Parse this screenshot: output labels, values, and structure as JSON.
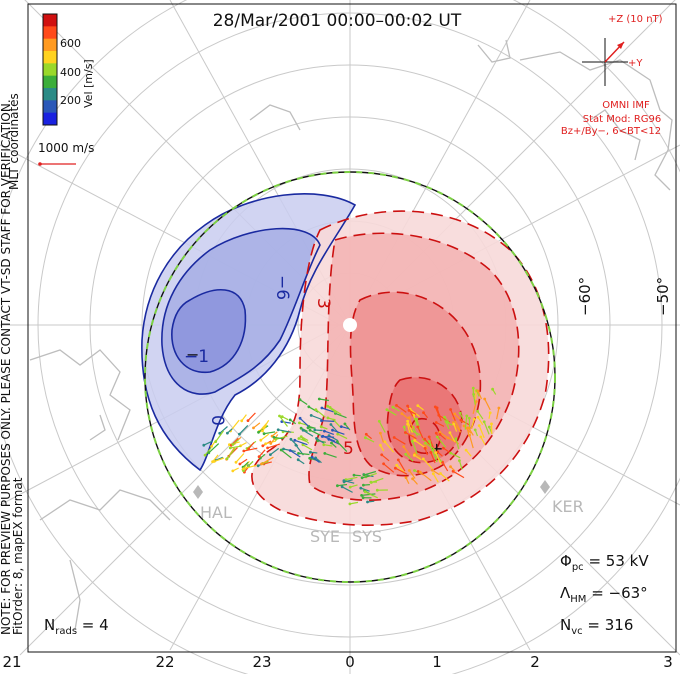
{
  "title": "28/Mar/2001 00:00–00:02 UT",
  "colorbar": {
    "label": "Vel [m/s]",
    "ticks": [
      "600",
      "400",
      "200"
    ],
    "colors": [
      "#d01010",
      "#ff4a1a",
      "#ff9a20",
      "#ffd21f",
      "#9ad82a",
      "#3cae3a",
      "#2b8b86",
      "#2a58b8",
      "#1a22e0"
    ]
  },
  "side_label": "MLT coordinates",
  "vertical_note": "NOTE: FOR PREVIEW PURPOSES ONLY. PLEASE CONTACT VT-SD STAFF FOR VERIFICATION.",
  "fit_note": "FitOrder: 8, mapEX format",
  "scale_vector": {
    "label": "1000 m/s"
  },
  "imf": {
    "z_label": "+Z (10 nT)",
    "y_label": "+Y",
    "source": "OMNI IMF",
    "stat_mod": "Stat Mod: RG96",
    "condition": "Bz+/By−, 6<BT<12"
  },
  "lat_labels": [
    "−60°",
    "−50°"
  ],
  "contour_labels": [
    "−6",
    "−1",
    "0",
    "3",
    "5"
  ],
  "mlt_ticks": [
    "21",
    "22",
    "23",
    "0",
    "1",
    "2",
    "3"
  ],
  "stations": [
    "HAL",
    "SYE",
    "SYS",
    "KER"
  ],
  "stats": {
    "phi_sym": "Φ",
    "phi_sub": "pc",
    "phi_value": " = 53 kV",
    "lam_sym": "Λ",
    "lam_sub": "HM",
    "lam_value": " = −63°",
    "nvc_sym": "N",
    "nvc_sub": "vc",
    "nvc_value": " = 316",
    "nrads_sym": "N",
    "nrads_sub": "rads",
    "nrads_value": " = 4"
  },
  "colors": {
    "negative_fill": "#9fa6e0",
    "negative_line": "#1a2aa0",
    "positive_fill": "#f08a8a",
    "positive_line": "#cc1010",
    "boundary": "#7cd043"
  }
}
